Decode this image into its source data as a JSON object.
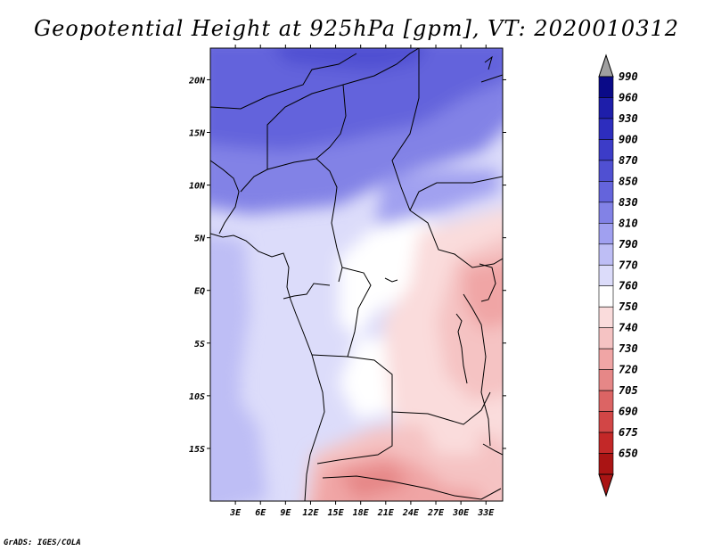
{
  "title": "Geopotential Height at 925hPa [gpm], VT: 2020010312",
  "credit": "GrADS: IGES/COLA",
  "map": {
    "variable": "Geopotential Height",
    "level": "925hPa",
    "units": "gpm",
    "valid_time": "2020010312",
    "lon_range": [
      0,
      35
    ],
    "lat_range": [
      -20,
      23
    ],
    "lon_ticks": [
      {
        "value": 3,
        "label": "3E"
      },
      {
        "value": 6,
        "label": "6E"
      },
      {
        "value": 9,
        "label": "9E"
      },
      {
        "value": 12,
        "label": "12E"
      },
      {
        "value": 15,
        "label": "15E"
      },
      {
        "value": 18,
        "label": "18E"
      },
      {
        "value": 21,
        "label": "21E"
      },
      {
        "value": 24,
        "label": "24E"
      },
      {
        "value": 27,
        "label": "27E"
      },
      {
        "value": 30,
        "label": "30E"
      },
      {
        "value": 33,
        "label": "33E"
      }
    ],
    "lat_ticks": [
      {
        "value": 20,
        "label": "20N"
      },
      {
        "value": 15,
        "label": "15N"
      },
      {
        "value": 10,
        "label": "10N"
      },
      {
        "value": 5,
        "label": "5N"
      },
      {
        "value": 0,
        "label": "EQ"
      },
      {
        "value": -5,
        "label": "5S"
      },
      {
        "value": -10,
        "label": "10S"
      },
      {
        "value": -15,
        "label": "15S"
      }
    ]
  },
  "colorbar": {
    "levels": [
      "990",
      "960",
      "930",
      "900",
      "870",
      "850",
      "830",
      "810",
      "790",
      "770",
      "760",
      "750",
      "740",
      "730",
      "720",
      "705",
      "690",
      "675",
      "650"
    ],
    "colors": [
      "#0a0a88",
      "#1e1eaa",
      "#2d2dbe",
      "#3c3cc8",
      "#5050d2",
      "#6464dc",
      "#8282e6",
      "#a0a0f0",
      "#bebef5",
      "#dcdcfa",
      "#ffffff",
      "#fadcdc",
      "#f5c3c3",
      "#f0a5a5",
      "#e68787",
      "#dc6464",
      "#d24646",
      "#c32828",
      "#aa1414"
    ],
    "top_arrow_color": "#a0a0a0",
    "bottom_arrow_color": "#aa1414"
  }
}
